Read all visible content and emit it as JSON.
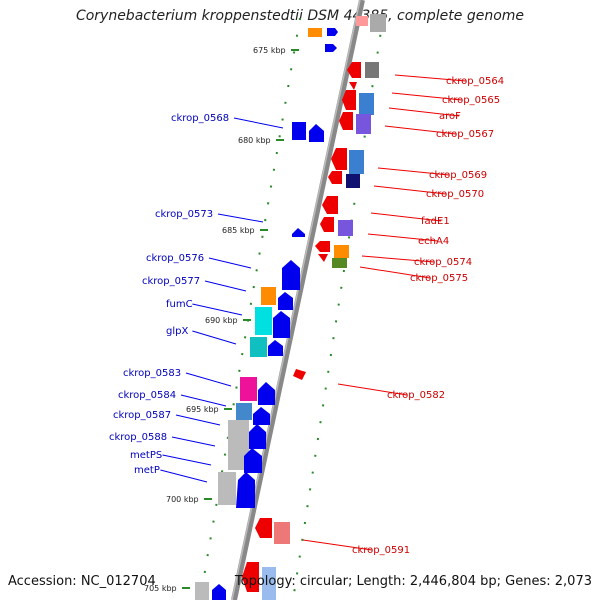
{
  "title": "Corynebacterium kroppenstedtii DSM 44385, complete genome",
  "footer": {
    "accession": "Accession: NC_012704",
    "summary": "Topology: circular; Length: 2,446,804 bp; Genes: 2,073"
  },
  "colors": {
    "forward": "#0000ee",
    "reverse": "#ee0000",
    "backbone": "#888888",
    "tick": "#2a8a2a"
  },
  "ticks": [
    {
      "label": "675 kbp"
    },
    {
      "label": "680 kbp"
    },
    {
      "label": "685 kbp"
    },
    {
      "label": "690 kbp"
    },
    {
      "label": "695 kbp"
    },
    {
      "label": "700 kbp"
    },
    {
      "label": "705 kbp"
    }
  ],
  "forward_labels": [
    {
      "label": "ckrop_0568"
    },
    {
      "label": "ckrop_0573"
    },
    {
      "label": "ckrop_0576"
    },
    {
      "label": "ckrop_0577"
    },
    {
      "label": "fumC"
    },
    {
      "label": "glpX"
    },
    {
      "label": "ckrop_0583"
    },
    {
      "label": "ckrop_0584"
    },
    {
      "label": "ckrop_0587"
    },
    {
      "label": "ckrop_0588"
    },
    {
      "label": "metPS"
    },
    {
      "label": "metP"
    }
  ],
  "reverse_labels": [
    {
      "label": "ckrop_0564"
    },
    {
      "label": "ckrop_0565"
    },
    {
      "label": "aroF"
    },
    {
      "label": "ckrop_0567"
    },
    {
      "label": "ckrop_0569"
    },
    {
      "label": "ckrop_0570"
    },
    {
      "label": "fadE1"
    },
    {
      "label": "echA4"
    },
    {
      "label": "ckrop_0574"
    },
    {
      "label": "ckrop_0575"
    },
    {
      "label": "ckrop_0582"
    },
    {
      "label": "ckrop_0591"
    }
  ]
}
